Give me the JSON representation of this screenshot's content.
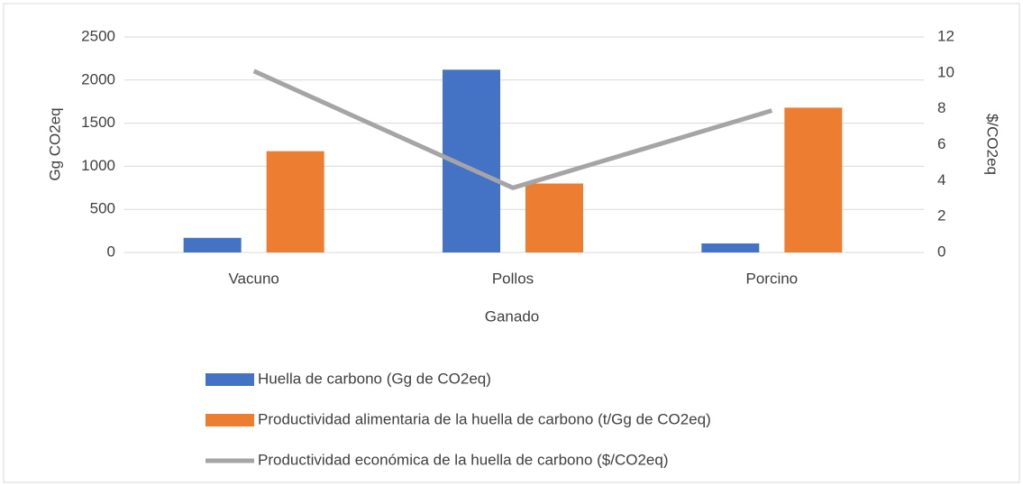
{
  "chart_data": {
    "type": "bar_line",
    "categories": [
      "Vacuno",
      "Pollos",
      "Porcino"
    ],
    "x_label": "Ganado",
    "y_label": "Gg CO2eq",
    "y2_label": "$/CO2eq",
    "series": [
      {
        "name": "Huella de carbono (Gg de CO2eq)",
        "type": "bar",
        "color": "#4472c4",
        "values": [
          170,
          2120,
          105
        ]
      },
      {
        "name": "Productividad alimentaria de la huella de carbono (t/Gg de CO2eq)",
        "type": "bar",
        "color": "#ed7d31",
        "values": [
          1175,
          800,
          1680
        ]
      },
      {
        "name": "Productividad económica de la huella de carbono ($/CO2eq)",
        "type": "line",
        "axis": "y2",
        "color": "#a5a5a5",
        "values": [
          10.1,
          3.6,
          7.9
        ]
      }
    ],
    "ylim": [
      0,
      2500
    ],
    "yticks": [
      0,
      500,
      1000,
      1500,
      2000,
      2500
    ],
    "y2lim": [
      0,
      12
    ],
    "y2ticks": [
      0,
      2,
      4,
      6,
      8,
      10,
      12
    ],
    "grid": true,
    "legend": "bottom"
  }
}
